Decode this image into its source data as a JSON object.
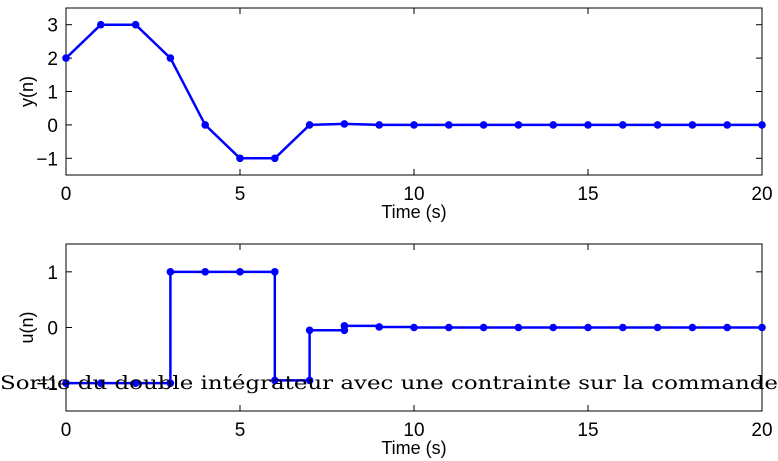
{
  "chart_data": [
    {
      "type": "line",
      "xlabel": "Time (s)",
      "ylabel": "y(n)",
      "xlim": [
        0,
        20
      ],
      "ylim": [
        -1.5,
        3.5
      ],
      "xticks": [
        0,
        5,
        10,
        15,
        20
      ],
      "yticks": [
        -1,
        0,
        1,
        2,
        3
      ],
      "xtick_labels": [
        "0",
        "5",
        "10",
        "15",
        "20"
      ],
      "ytick_labels": [
        "−1",
        "0",
        "1",
        "2",
        "3"
      ],
      "grid": false,
      "step": false,
      "series": [
        {
          "x": [
            0,
            1,
            2,
            3,
            4,
            5,
            6,
            7,
            8,
            9,
            10,
            11,
            12,
            13,
            14,
            15,
            16,
            17,
            18,
            19,
            20
          ],
          "values": [
            2,
            3,
            3,
            2,
            0,
            -1,
            -1,
            0,
            0.03,
            0,
            0,
            0,
            0,
            0,
            0,
            0,
            0,
            0,
            0,
            0,
            0
          ]
        }
      ],
      "color": "#0000ff"
    },
    {
      "type": "line",
      "xlabel": "Time (s)",
      "ylabel": "u(n)",
      "xlim": [
        0,
        20
      ],
      "ylim": [
        -1.5,
        1.5
      ],
      "xticks": [
        0,
        5,
        10,
        15,
        20
      ],
      "yticks": [
        -1,
        0,
        1
      ],
      "xtick_labels": [
        "0",
        "5",
        "10",
        "15",
        "20"
      ],
      "ytick_labels": [
        "−1",
        "0",
        "1"
      ],
      "grid": false,
      "step": true,
      "series": [
        {
          "x": [
            0,
            1,
            2,
            3,
            4,
            5,
            6,
            7,
            8,
            9,
            10,
            11,
            12,
            13,
            14,
            15,
            16,
            17,
            18,
            19,
            20
          ],
          "values": [
            -1,
            -1,
            -1,
            1,
            1,
            1,
            -0.95,
            -0.05,
            0.03,
            0.01,
            0,
            0,
            0,
            0,
            0,
            0,
            0,
            0,
            0,
            0,
            0
          ]
        }
      ],
      "color": "#0000ff"
    }
  ],
  "overlay_text": "Sortie du double intégrateur avec une contrainte sur la commande"
}
